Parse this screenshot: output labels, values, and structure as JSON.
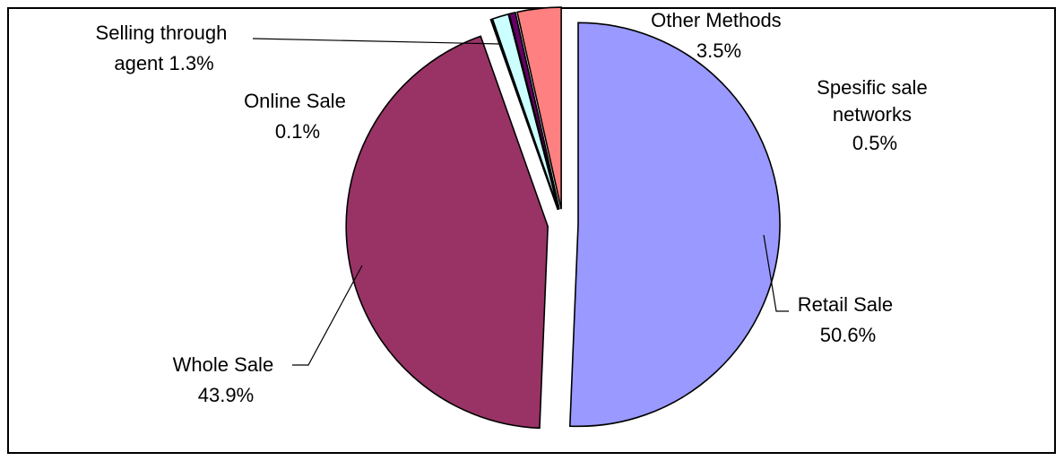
{
  "chart_data": {
    "type": "pie",
    "title": "",
    "series": [
      {
        "name": "",
        "slices": [
          {
            "label_lines": [
              "Retail Sale",
              "50.6%"
            ],
            "category": "Retail Sale",
            "value": 50.6,
            "color": "#9999FF"
          },
          {
            "label_lines": [
              "Whole Sale",
              "43.9%"
            ],
            "category": "Whole Sale",
            "value": 43.9,
            "color": "#993366"
          },
          {
            "label_lines": [
              "Online Sale",
              "0.1%"
            ],
            "category": "Online Sale",
            "value": 0.1,
            "color": "#FFFFCC"
          },
          {
            "label_lines": [
              "Selling through",
              "agent 1.3%"
            ],
            "category": "Selling through agent",
            "value": 1.3,
            "color": "#CCFFFF"
          },
          {
            "label_lines": [
              "Spesific sale",
              "networks",
              "0.5%"
            ],
            "category": "Spesific sale networks",
            "value": 0.5,
            "color": "#660066"
          },
          {
            "label_lines": [
              "Other Methods",
              "3.5%"
            ],
            "category": "Other Methods",
            "value": 3.5,
            "color": "#FF8080"
          }
        ]
      }
    ],
    "legend": "none",
    "exploded": true
  }
}
